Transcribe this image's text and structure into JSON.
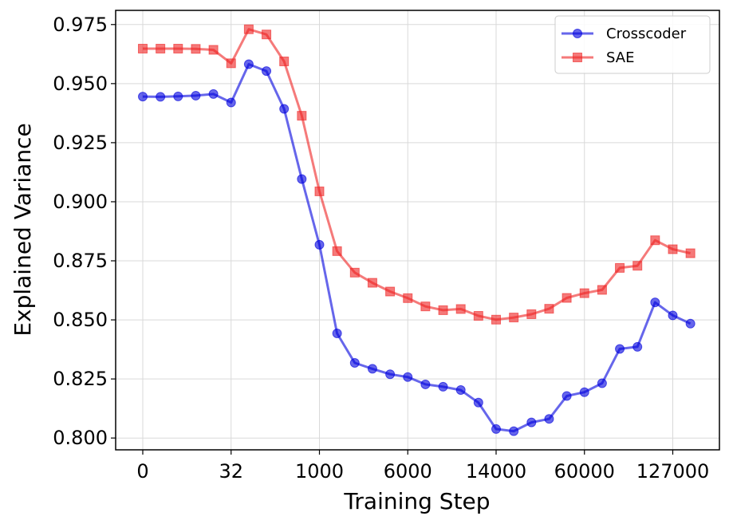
{
  "chart_data": {
    "type": "line",
    "xlabel": "Training Step",
    "ylabel": "Explained Variance",
    "x_tick_labels": [
      "0",
      "32",
      "1000",
      "6000",
      "14000",
      "60000",
      "127000"
    ],
    "x_tick_indices": [
      0,
      5,
      10,
      15,
      20,
      25,
      30
    ],
    "ylim": [
      0.795,
      0.981
    ],
    "y_ticks": [
      0.8,
      0.825,
      0.85,
      0.875,
      0.9,
      0.925,
      0.95,
      0.975
    ],
    "y_tick_labels": [
      "0.800",
      "0.825",
      "0.850",
      "0.875",
      "0.900",
      "0.925",
      "0.950",
      "0.975"
    ],
    "grid": true,
    "legend_position": "top-right",
    "series": [
      {
        "name": "Crosscoder",
        "color": "#0000dd",
        "marker": "circle",
        "values": [
          0.9445,
          0.9444,
          0.9446,
          0.9449,
          0.9456,
          0.942,
          0.9582,
          0.9553,
          0.9393,
          0.9096,
          0.8818,
          0.8443,
          0.8318,
          0.8293,
          0.827,
          0.8258,
          0.8227,
          0.8217,
          0.8203,
          0.815,
          0.8038,
          0.8029,
          0.8066,
          0.8081,
          0.8178,
          0.8194,
          0.8232,
          0.8377,
          0.8386,
          0.8574,
          0.8519,
          0.8484
        ]
      },
      {
        "name": "SAE",
        "color": "#ee2222",
        "marker": "square",
        "values": [
          0.9648,
          0.9648,
          0.9648,
          0.9647,
          0.9643,
          0.9586,
          0.973,
          0.9708,
          0.9594,
          0.9364,
          0.9044,
          0.8791,
          0.87,
          0.8657,
          0.862,
          0.8592,
          0.8557,
          0.8541,
          0.8546,
          0.8517,
          0.8501,
          0.851,
          0.8524,
          0.8547,
          0.8593,
          0.8613,
          0.8627,
          0.872,
          0.8729,
          0.8837,
          0.8799,
          0.8782
        ]
      }
    ]
  }
}
